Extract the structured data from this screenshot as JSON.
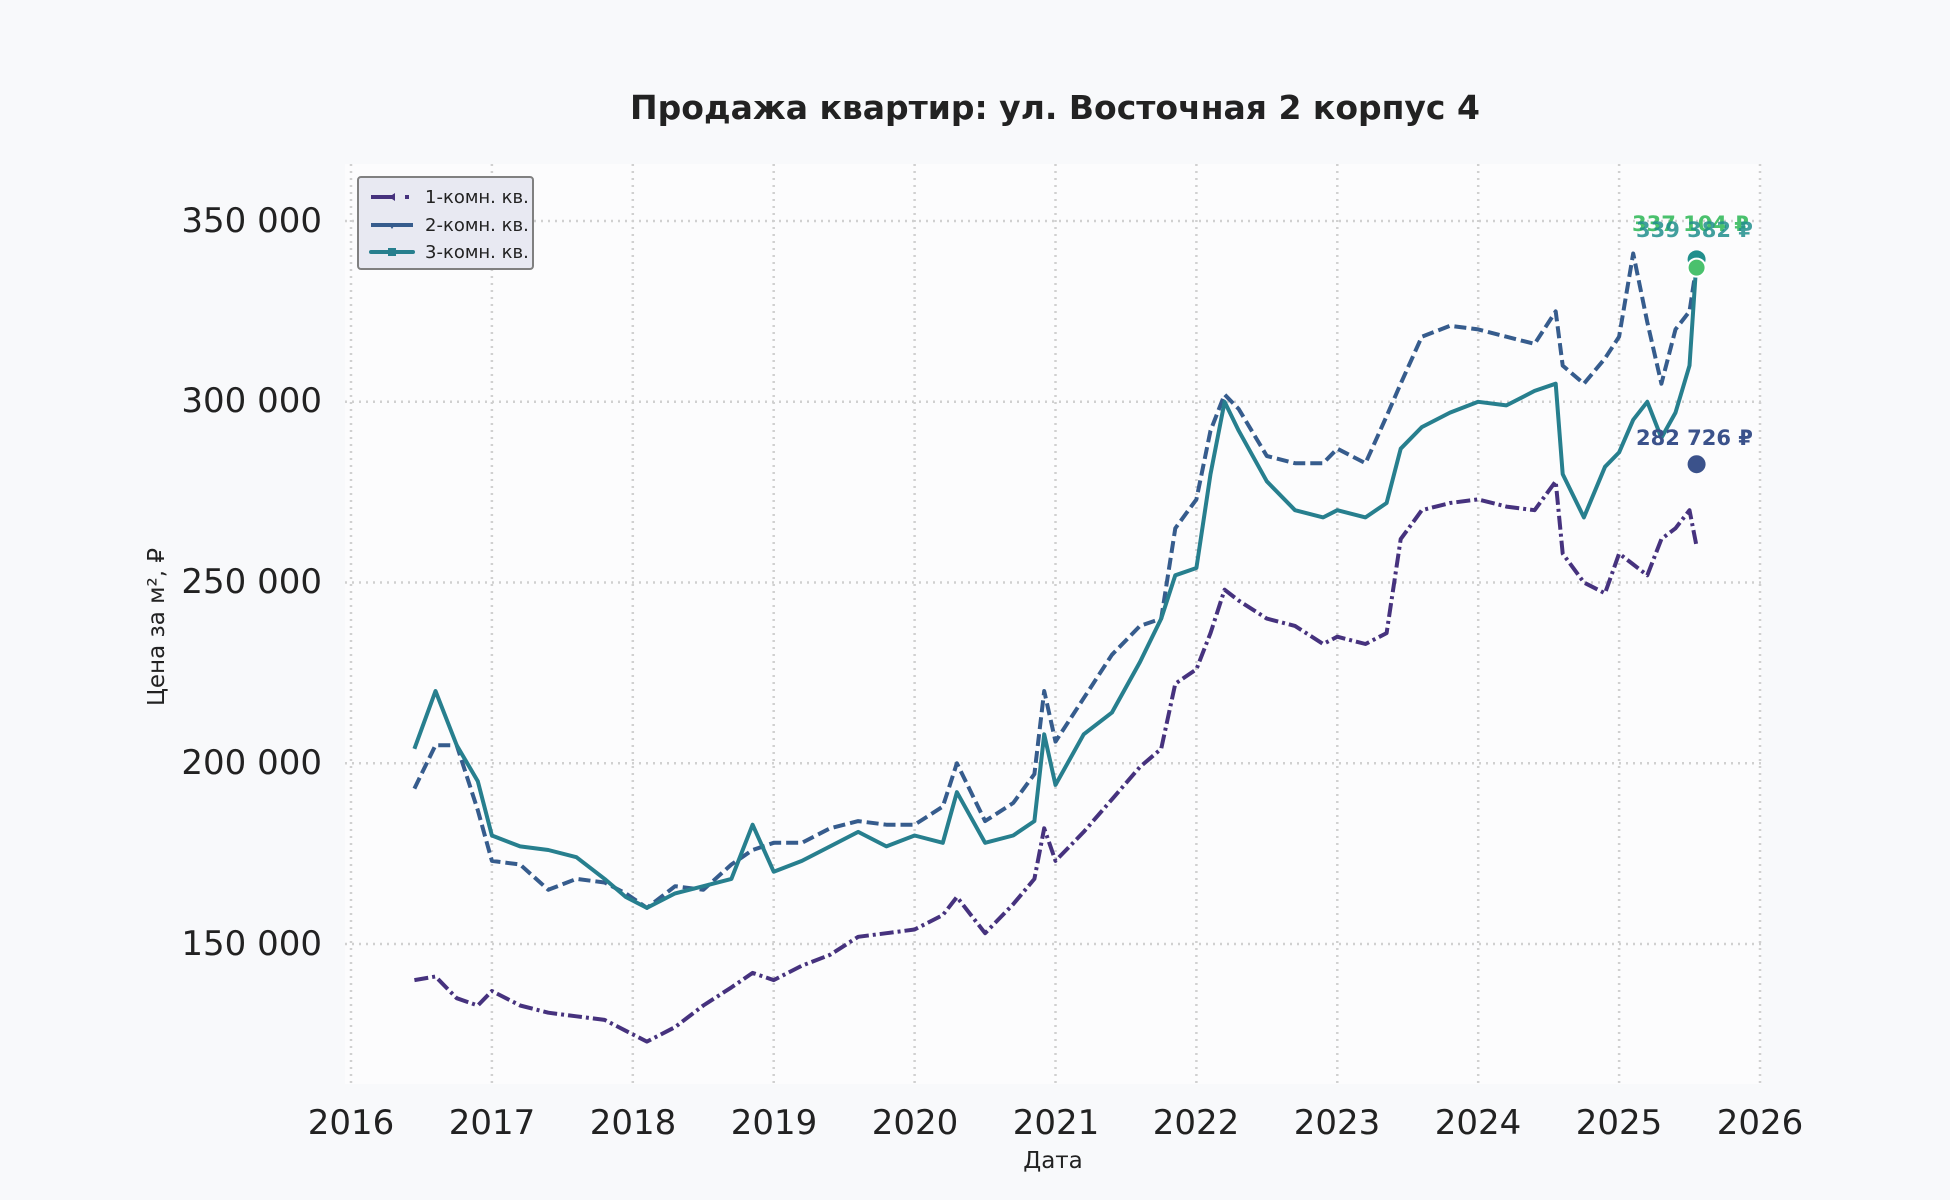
{
  "chart_data": {
    "type": "line",
    "title": "Продажа квартир: ул. Восточная 2 корпус 4",
    "xlabel": "Дата",
    "ylabel": "Цена за м², ₽",
    "xlim": [
      2016,
      2026
    ],
    "ylim": [
      110000,
      365000
    ],
    "x_ticks": [
      "2016",
      "2017",
      "2018",
      "2019",
      "2020",
      "2021",
      "2022",
      "2023",
      "2024",
      "2025",
      "2026"
    ],
    "y_ticks": [
      "150 000",
      "200 000",
      "250 000",
      "300 000",
      "350 000"
    ],
    "y_tick_values": [
      150000,
      200000,
      250000,
      300000,
      350000
    ],
    "grid": true,
    "legend_position": "upper left",
    "x": [
      2016.45,
      2016.6,
      2016.75,
      2016.9,
      2017.0,
      2017.2,
      2017.4,
      2017.6,
      2017.8,
      2017.95,
      2018.1,
      2018.3,
      2018.5,
      2018.7,
      2018.85,
      2019.0,
      2019.2,
      2019.4,
      2019.6,
      2019.8,
      2020.0,
      2020.2,
      2020.3,
      2020.5,
      2020.7,
      2020.85,
      2020.92,
      2021.0,
      2021.2,
      2021.4,
      2021.6,
      2021.75,
      2021.85,
      2022.0,
      2022.1,
      2022.2,
      2022.3,
      2022.5,
      2022.7,
      2022.9,
      2023.0,
      2023.2,
      2023.35,
      2023.45,
      2023.6,
      2023.8,
      2024.0,
      2024.2,
      2024.4,
      2024.55,
      2024.6,
      2024.75,
      2024.9,
      2025.0,
      2025.1,
      2025.2,
      2025.3,
      2025.4,
      2025.5,
      2025.55
    ],
    "series": [
      {
        "name": "1-комн. кв.",
        "color": "#46327e",
        "dash": "14 4 3 4",
        "values": [
          140000,
          141000,
          135000,
          133000,
          137000,
          133000,
          131000,
          130000,
          129000,
          126000,
          123000,
          127000,
          133000,
          138000,
          142000,
          140000,
          144000,
          147000,
          152000,
          153000,
          154000,
          158000,
          163000,
          153000,
          161000,
          168000,
          182000,
          173000,
          181000,
          190000,
          199000,
          204000,
          222000,
          226000,
          236000,
          248000,
          245000,
          240000,
          238000,
          233000,
          235000,
          233000,
          236000,
          262000,
          270000,
          272000,
          273000,
          271000,
          270000,
          278000,
          258000,
          250000,
          247000,
          258000,
          255000,
          252000,
          262000,
          265000,
          270000,
          260000
        ]
      },
      {
        "name": "2-комн. кв.",
        "color": "#365c8d",
        "dash": "12 5",
        "values": [
          193000,
          205000,
          205000,
          187000,
          173000,
          172000,
          165000,
          168000,
          167000,
          164000,
          160000,
          166000,
          165000,
          172000,
          176000,
          178000,
          178000,
          182000,
          184000,
          183000,
          183000,
          188000,
          200000,
          184000,
          189000,
          197000,
          220000,
          206000,
          218000,
          230000,
          238000,
          240000,
          265000,
          273000,
          292000,
          302000,
          298000,
          285000,
          283000,
          283000,
          287000,
          283000,
          296000,
          305000,
          318000,
          321000,
          320000,
          318000,
          316000,
          325000,
          310000,
          305000,
          312000,
          318000,
          341000,
          322000,
          305000,
          320000,
          325000,
          338000
        ]
      },
      {
        "name": "3-комн. кв.",
        "color": "#277f8e",
        "dash": "none",
        "values": [
          204000,
          220000,
          205000,
          195000,
          180000,
          177000,
          176000,
          174000,
          168000,
          163000,
          160000,
          164000,
          166000,
          168000,
          183000,
          170000,
          173000,
          177000,
          181000,
          177000,
          180000,
          178000,
          192000,
          178000,
          180000,
          184000,
          208000,
          194000,
          208000,
          214000,
          228000,
          240000,
          252000,
          254000,
          280000,
          300000,
          292000,
          278000,
          270000,
          268000,
          270000,
          268000,
          272000,
          287000,
          293000,
          297000,
          300000,
          299000,
          303000,
          305000,
          280000,
          268000,
          282000,
          286000,
          295000,
          300000,
          290000,
          297000,
          310000,
          339382
        ]
      }
    ],
    "annotations": [
      {
        "text": "337 104 ₽",
        "color": "#4ac16d",
        "value": 337104
      },
      {
        "text": "339 382 ₽",
        "color": "#218f8d",
        "value": 339382
      },
      {
        "text": "282 726 ₽",
        "color": "#3b528b",
        "value": 282726
      }
    ]
  }
}
